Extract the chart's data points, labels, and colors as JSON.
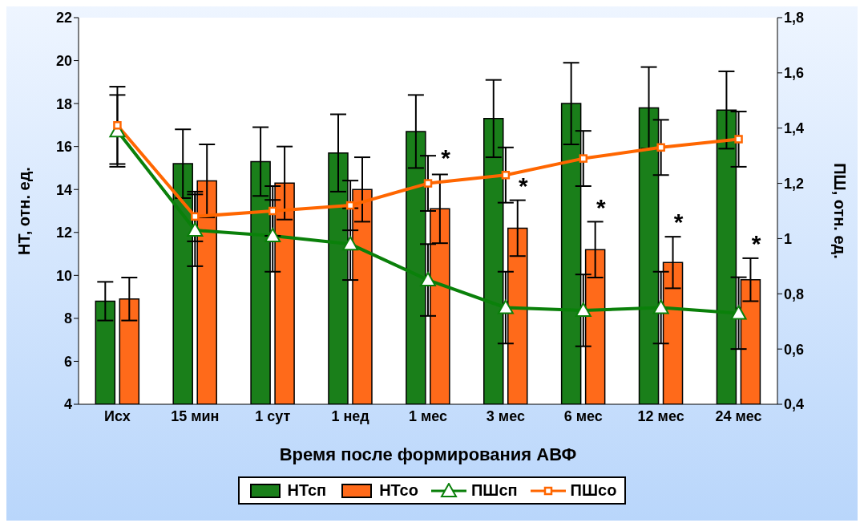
{
  "chart_data": {
    "type": "bar",
    "xlabel": "Время после формирования АВФ",
    "ylabel": "НТ, отн. ед.",
    "y2label": "ПШ, отн. ед.",
    "categories": [
      "Исх",
      "15 мин",
      "1 сут",
      "1 нед",
      "1 мес",
      "3 мес",
      "6 мес",
      "12 мес",
      "24 мес"
    ],
    "series": [
      {
        "name": "НТсп",
        "color": "#1a7f1a",
        "values": [
          8.8,
          15.2,
          15.3,
          15.7,
          16.7,
          17.3,
          18.0,
          17.8,
          17.7
        ],
        "errors": [
          0.9,
          1.6,
          1.6,
          1.8,
          1.7,
          1.8,
          1.9,
          1.9,
          1.8
        ]
      },
      {
        "name": "НТсо",
        "color": "#ff6a1a",
        "values": [
          8.9,
          14.4,
          14.3,
          14.0,
          13.1,
          12.2,
          11.2,
          10.6,
          9.8
        ],
        "errors": [
          1.0,
          1.7,
          1.7,
          1.5,
          1.6,
          1.3,
          1.3,
          1.2,
          1.0
        ]
      },
      {
        "name": "ПШсп",
        "type": "line",
        "axis": "y2",
        "color": "#0a800a",
        "marker": "triangle",
        "values": [
          1.39,
          1.03,
          1.01,
          0.98,
          0.85,
          0.75,
          0.74,
          0.75,
          0.73
        ],
        "errors": [
          0.13,
          0.13,
          0.13,
          0.13,
          0.13,
          0.13,
          0.13,
          0.13,
          0.13
        ]
      },
      {
        "name": "ПШсо",
        "type": "line",
        "axis": "y2",
        "color": "#ff6600",
        "marker": "square",
        "values": [
          1.41,
          1.08,
          1.1,
          1.12,
          1.2,
          1.23,
          1.29,
          1.33,
          1.36
        ],
        "errors": [
          0.14,
          0.09,
          0.09,
          0.09,
          0.1,
          0.1,
          0.1,
          0.1,
          0.1
        ]
      }
    ],
    "ylim": [
      4,
      22
    ],
    "yticks": [
      4,
      6,
      8,
      10,
      12,
      14,
      16,
      18,
      20,
      22
    ],
    "y2lim": [
      0.4,
      1.8
    ],
    "y2ticks": [
      {
        "value": 0.4,
        "label": "0,4"
      },
      {
        "value": 0.6,
        "label": "0,6"
      },
      {
        "value": 0.8,
        "label": "0,8"
      },
      {
        "value": 1,
        "label": "1"
      },
      {
        "value": 1.2,
        "label": "1,2"
      },
      {
        "value": 1.4,
        "label": "1,4"
      },
      {
        "value": 1.6,
        "label": "1,6"
      },
      {
        "value": 1.8,
        "label": "1,8"
      }
    ],
    "annotations": [
      {
        "text": "*",
        "x": "1 мес",
        "y": 14.9
      },
      {
        "text": "*",
        "x": "3 мес",
        "y": 13.6
      },
      {
        "text": "*",
        "x": "6 мес",
        "y": 12.6
      },
      {
        "text": "*",
        "x": "12 мес",
        "y": 11.9
      },
      {
        "text": "*",
        "x": "24 мес",
        "y": 10.9
      }
    ],
    "grid": false,
    "legend": "bottom"
  }
}
